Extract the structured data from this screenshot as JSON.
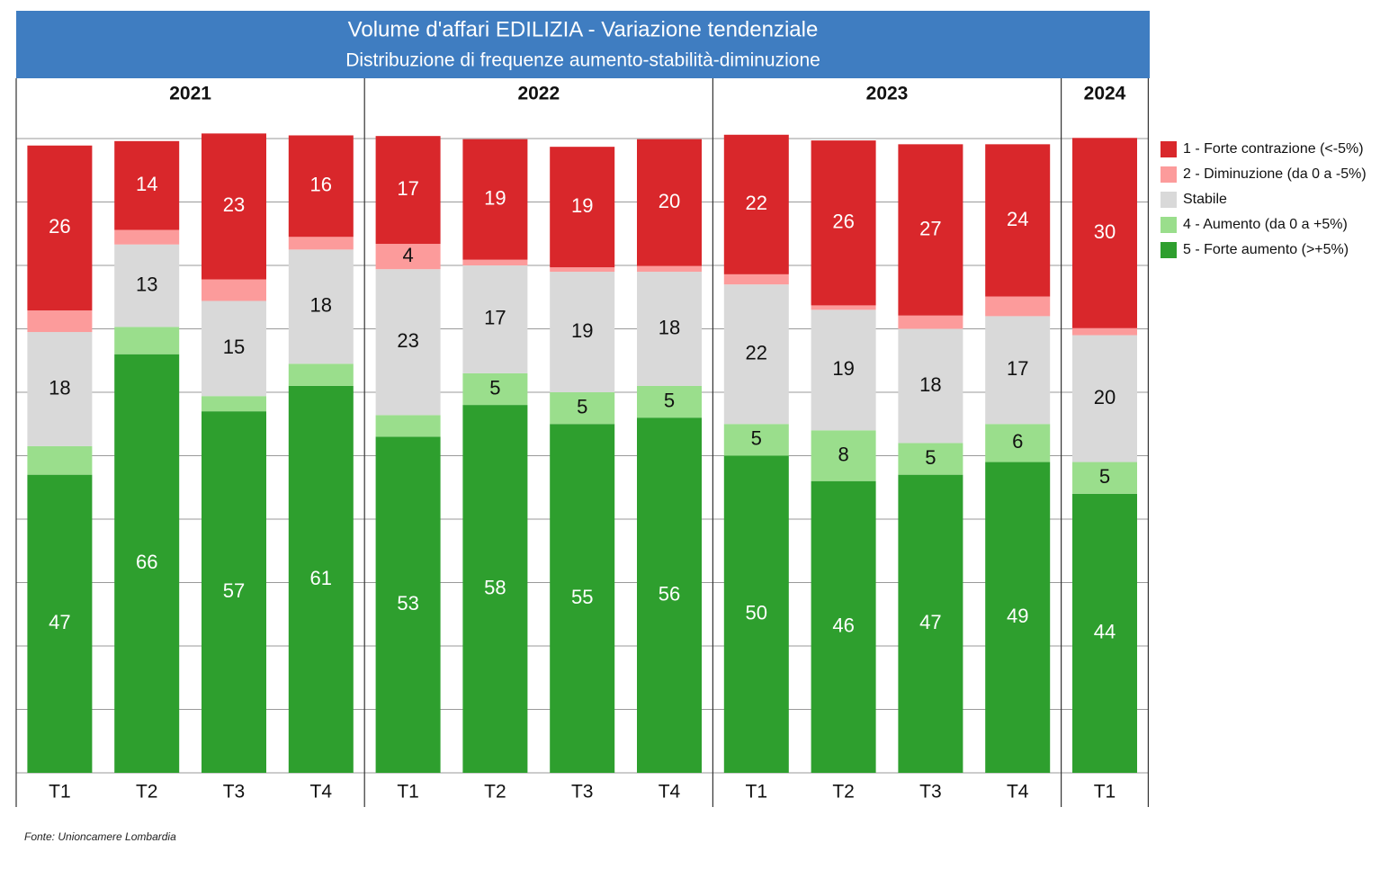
{
  "chart_data": {
    "type": "stacked_bar_100",
    "title": "Volume d'affari EDILIZIA - Variazione tendenziale",
    "subtitle": "Distribuzione di frequenze aumento-stabilità-diminuzione",
    "source": "Fonte: Unioncamere Lombardia",
    "groups": [
      {
        "label": "2021",
        "categories": [
          "T1",
          "T2",
          "T3",
          "T4"
        ]
      },
      {
        "label": "2022",
        "categories": [
          "T1",
          "T2",
          "T3",
          "T4"
        ]
      },
      {
        "label": "2023",
        "categories": [
          "T1",
          "T2",
          "T3",
          "T4"
        ]
      },
      {
        "label": "2024",
        "categories": [
          "T1"
        ]
      }
    ],
    "ylim": [
      0,
      100
    ],
    "yticks": [
      0,
      10,
      20,
      30,
      40,
      50,
      60,
      70,
      80,
      90,
      100
    ],
    "grid": true,
    "legend": "right",
    "series": [
      {
        "name": "5 - Forte aumento (>+5%)",
        "color": "#2e9f2e",
        "label_color": "#ffffff",
        "values": [
          47,
          66,
          57,
          61,
          53,
          58,
          55,
          56,
          50,
          46,
          47,
          49,
          44
        ],
        "value_labels": [
          "47",
          "66",
          "57",
          "61",
          "53",
          "58",
          "55",
          "56",
          "50",
          "46",
          "47",
          "49",
          "44"
        ]
      },
      {
        "name": "4 - Aumento (da 0 a +5%)",
        "color": "#9ade8c",
        "label_color": "#111111",
        "values": [
          4.5,
          4.3,
          2.4,
          3.5,
          3.4,
          5,
          5,
          5,
          5,
          8,
          5,
          6,
          5
        ],
        "value_labels": [
          null,
          null,
          null,
          null,
          null,
          "5",
          "5",
          "5",
          "5",
          "8",
          "5",
          "6",
          "5"
        ]
      },
      {
        "name": "Stabile",
        "color": "#d9d9d9",
        "label_color": "#111111",
        "values": [
          18,
          13,
          15,
          18,
          23,
          17,
          19,
          18,
          22,
          19,
          18,
          17,
          20
        ],
        "value_labels": [
          "18",
          "13",
          "15",
          "18",
          "23",
          "17",
          "19",
          "18",
          "22",
          "19",
          "18",
          "17",
          "20"
        ]
      },
      {
        "name": "2 - Diminuzione (da 0 a -5%)",
        "color": "#fc9b9b",
        "label_color": "#111111",
        "values": [
          3.4,
          2.3,
          3.4,
          2.0,
          4,
          0.9,
          0.7,
          0.9,
          1.6,
          0.7,
          2.1,
          3.1,
          1.1
        ],
        "value_labels": [
          null,
          null,
          null,
          null,
          "4",
          null,
          null,
          null,
          null,
          null,
          null,
          null,
          null
        ]
      },
      {
        "name": "1 - Forte contrazione (<-5%)",
        "color": "#d9272b",
        "label_color": "#ffffff",
        "values": [
          26,
          14,
          23,
          16,
          17,
          19,
          19,
          20,
          22,
          26,
          27,
          24,
          30
        ],
        "value_labels": [
          "26",
          "14",
          "23",
          "16",
          "17",
          "19",
          "19",
          "20",
          "22",
          "26",
          "27",
          "24",
          "30"
        ]
      }
    ]
  }
}
